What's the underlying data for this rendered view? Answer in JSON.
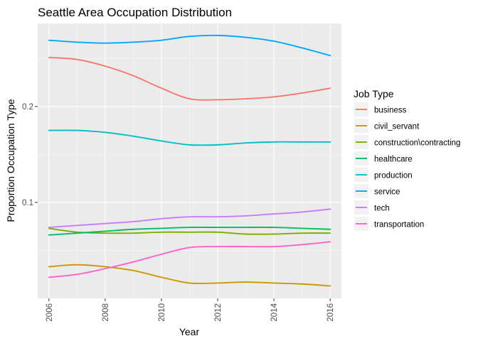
{
  "chart_data": {
    "type": "line",
    "title": "Seattle Area Occupation Distribution",
    "xlabel": "Year",
    "ylabel": "Proportion Occupation Type",
    "x": [
      2006,
      2007,
      2008,
      2009,
      2010,
      2011,
      2012,
      2013,
      2014,
      2015,
      2016
    ],
    "xlim": [
      2005.6,
      2016.4
    ],
    "ylim": [
      0.0,
      0.2865
    ],
    "x_ticks": [
      2006,
      2008,
      2010,
      2012,
      2014,
      2016
    ],
    "y_ticks": [
      0.1,
      0.2
    ],
    "y_tick_labels": [
      "0.1",
      "0.2"
    ],
    "grid": true,
    "legend": {
      "title": "Job Type",
      "placement": "right"
    },
    "series": [
      {
        "name": "business",
        "color": "#F8766D",
        "values": [
          0.251,
          0.249,
          0.242,
          0.232,
          0.219,
          0.208,
          0.207,
          0.208,
          0.21,
          0.214,
          0.219
        ]
      },
      {
        "name": "civil_servant",
        "color": "#CD9600",
        "values": [
          0.033,
          0.035,
          0.033,
          0.029,
          0.022,
          0.016,
          0.016,
          0.017,
          0.016,
          0.015,
          0.013
        ]
      },
      {
        "name": "construction\\contracting",
        "color": "#7CAE00",
        "values": [
          0.073,
          0.069,
          0.068,
          0.068,
          0.069,
          0.069,
          0.069,
          0.067,
          0.067,
          0.068,
          0.068
        ]
      },
      {
        "name": "healthcare",
        "color": "#00BE67",
        "values": [
          0.066,
          0.068,
          0.07,
          0.072,
          0.073,
          0.074,
          0.074,
          0.074,
          0.074,
          0.073,
          0.072
        ]
      },
      {
        "name": "production",
        "color": "#00BFC4",
        "values": [
          0.175,
          0.175,
          0.173,
          0.169,
          0.164,
          0.16,
          0.16,
          0.162,
          0.163,
          0.163,
          0.163
        ]
      },
      {
        "name": "service",
        "color": "#00A9FF",
        "values": [
          0.269,
          0.267,
          0.266,
          0.267,
          0.269,
          0.273,
          0.274,
          0.272,
          0.268,
          0.261,
          0.253
        ]
      },
      {
        "name": "tech",
        "color": "#C77CFF",
        "values": [
          0.074,
          0.076,
          0.078,
          0.08,
          0.083,
          0.085,
          0.085,
          0.086,
          0.088,
          0.09,
          0.093
        ]
      },
      {
        "name": "transportation",
        "color": "#FF61CC",
        "values": [
          0.022,
          0.025,
          0.031,
          0.038,
          0.046,
          0.053,
          0.054,
          0.054,
          0.054,
          0.056,
          0.059
        ]
      }
    ]
  }
}
